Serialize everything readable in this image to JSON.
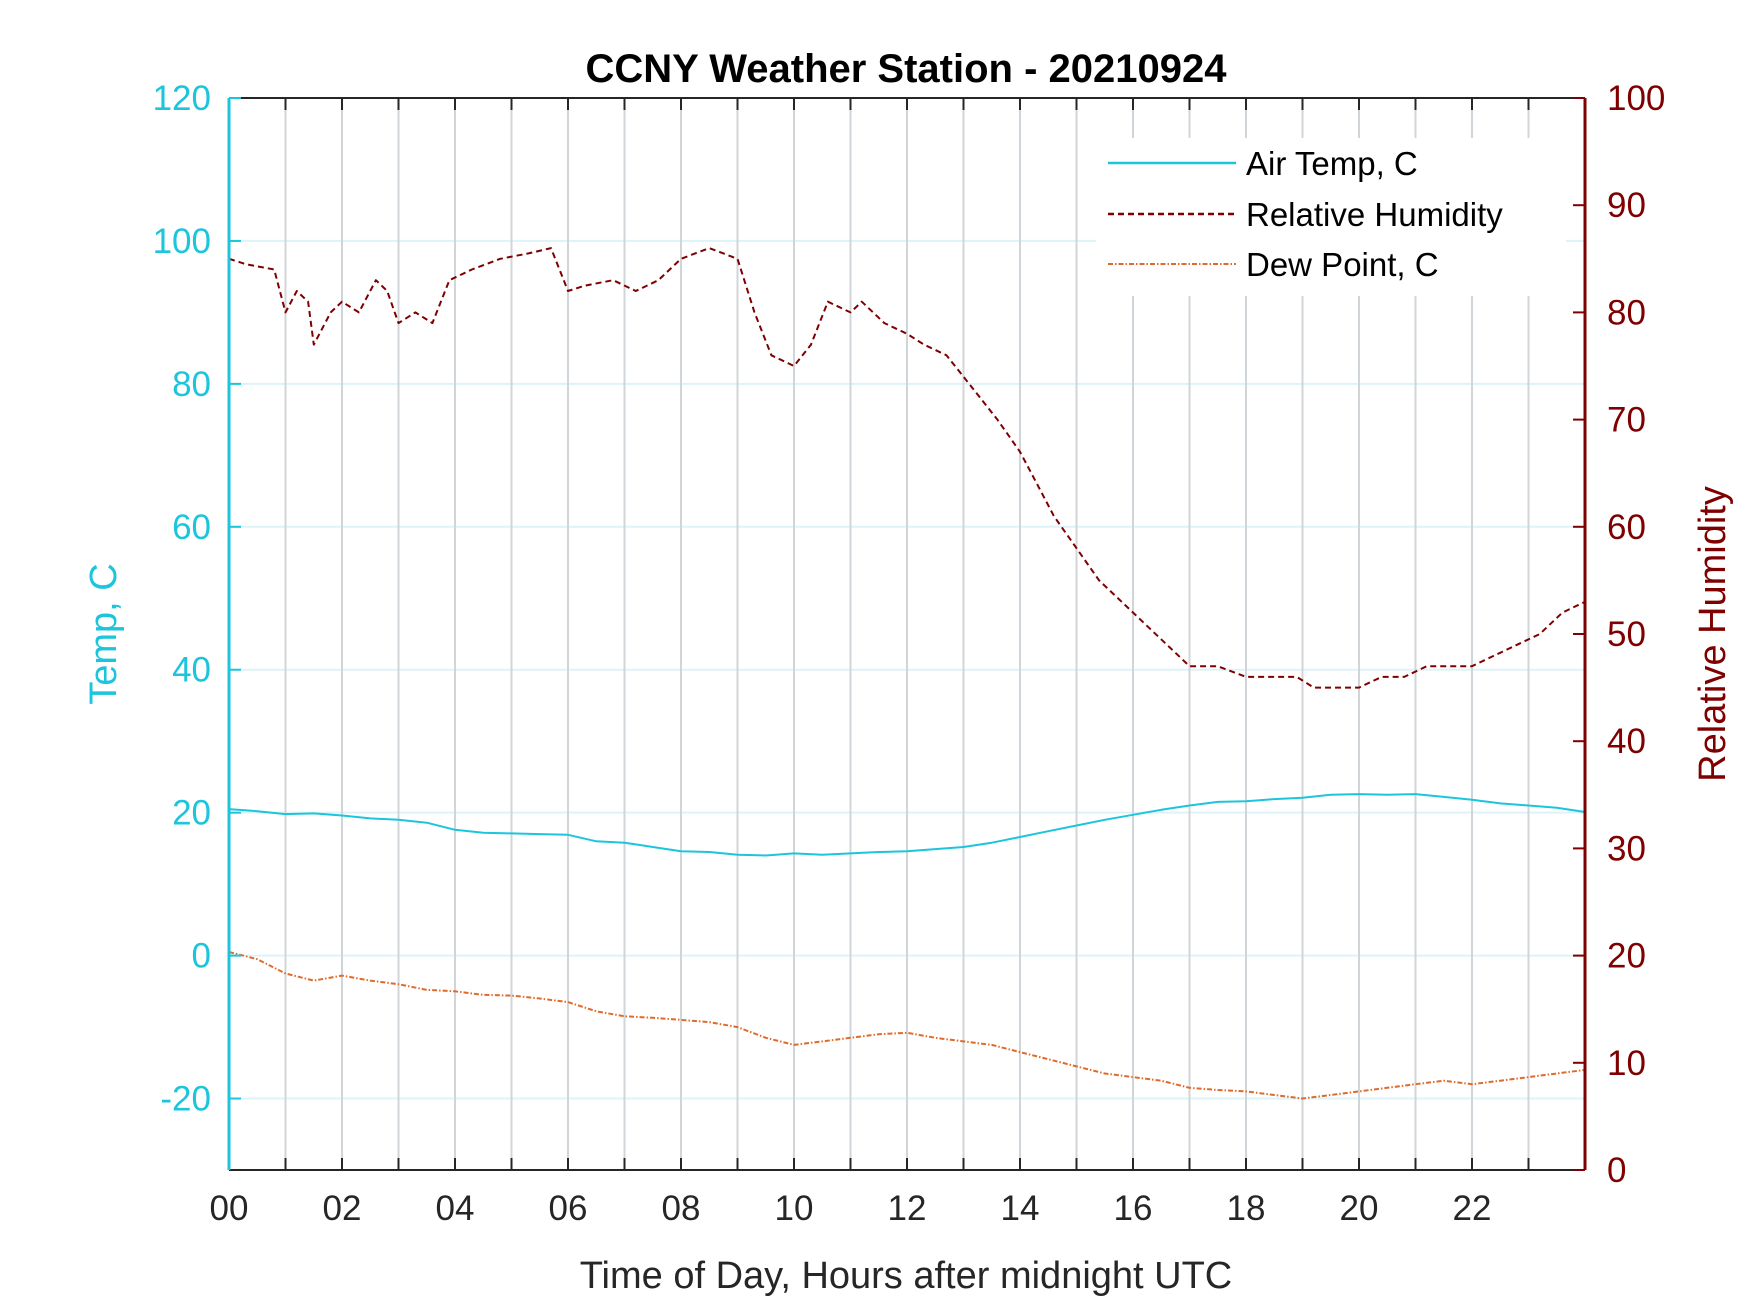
{
  "chart_data": {
    "type": "line",
    "title": "CCNY Weather Station - 20210924",
    "xlabel": "Time of Day, Hours after midnight UTC",
    "ylabel_left": "Temp, C",
    "ylabel_right": "Relative Humidity",
    "xlim": [
      0,
      24
    ],
    "ylim_left": [
      -30,
      120
    ],
    "ylim_right": [
      0,
      100
    ],
    "x_ticks": [
      0,
      2,
      4,
      6,
      8,
      10,
      12,
      14,
      16,
      18,
      20,
      22
    ],
    "x_tick_labels": [
      "00",
      "02",
      "04",
      "06",
      "08",
      "10",
      "12",
      "14",
      "16",
      "18",
      "20",
      "22"
    ],
    "y_left_ticks": [
      -20,
      0,
      20,
      40,
      60,
      80,
      100,
      120
    ],
    "y_left_tick_labels": [
      "-20",
      "0",
      "20",
      "40",
      "60",
      "80",
      "100",
      "120"
    ],
    "y_right_ticks": [
      0,
      10,
      20,
      30,
      40,
      50,
      60,
      70,
      80,
      90,
      100
    ],
    "y_right_tick_labels": [
      "0",
      "10",
      "20",
      "30",
      "40",
      "50",
      "60",
      "70",
      "80",
      "90",
      "100"
    ],
    "grid": true,
    "legend_position": "top-right",
    "colors": {
      "left_axis": "#1CC5DC",
      "right_axis": "#7F0000",
      "air_temp": "#1CC5DC",
      "humidity": "#7F0000",
      "dew_point": "#E06A2A",
      "grid_vertical": "#D0D5DA",
      "grid_horizontal": "#DDF3F7"
    },
    "series": [
      {
        "name": "Air Temp, C",
        "axis": "left",
        "style": "solid",
        "x": [
          0,
          0.5,
          1,
          1.5,
          2,
          2.5,
          3,
          3.5,
          4,
          4.5,
          5,
          5.5,
          6,
          6.5,
          7,
          7.5,
          8,
          8.5,
          9,
          9.5,
          10,
          10.5,
          11,
          11.5,
          12,
          12.5,
          13,
          13.5,
          14,
          14.5,
          15,
          15.5,
          16,
          16.5,
          17,
          17.5,
          18,
          18.5,
          19,
          19.5,
          20,
          20.5,
          21,
          21.5,
          22,
          22.5,
          23,
          23.5,
          24
        ],
        "values": [
          20.5,
          20.2,
          19.8,
          19.9,
          19.6,
          19.2,
          19.0,
          18.6,
          17.6,
          17.2,
          17.1,
          17.0,
          16.9,
          16.0,
          15.8,
          15.2,
          14.6,
          14.5,
          14.1,
          14.0,
          14.3,
          14.1,
          14.3,
          14.5,
          14.6,
          14.9,
          15.2,
          15.8,
          16.6,
          17.4,
          18.2,
          19.0,
          19.7,
          20.4,
          21.0,
          21.5,
          21.6,
          21.9,
          22.1,
          22.5,
          22.6,
          22.5,
          22.6,
          22.2,
          21.8,
          21.3,
          21.0,
          20.7,
          20.1
        ]
      },
      {
        "name": "Relative Humidity",
        "axis": "right",
        "style": "dashed",
        "x": [
          0,
          0.3,
          0.8,
          1.0,
          1.2,
          1.4,
          1.5,
          1.8,
          2.0,
          2.3,
          2.6,
          2.8,
          3.0,
          3.3,
          3.6,
          3.9,
          4.3,
          4.8,
          5.3,
          5.7,
          6.0,
          6.3,
          6.8,
          7.2,
          7.6,
          8.0,
          8.5,
          9.0,
          9.3,
          9.6,
          10.0,
          10.3,
          10.6,
          11.0,
          11.2,
          11.4,
          11.6,
          12.0,
          12.3,
          12.7,
          13.0,
          13.3,
          13.6,
          14.0,
          14.3,
          14.6,
          15.0,
          15.4,
          15.8,
          16.2,
          16.6,
          17.0,
          17.5,
          18.0,
          18.5,
          18.9,
          19.2,
          19.6,
          20.0,
          20.4,
          20.8,
          21.2,
          21.6,
          22.0,
          22.4,
          22.8,
          23.2,
          23.6,
          24.0
        ],
        "values": [
          85,
          84.5,
          84,
          80,
          82,
          81,
          77,
          80,
          81,
          80,
          83,
          82,
          79,
          80,
          79,
          83,
          84,
          85,
          85.5,
          86,
          82,
          82.5,
          83,
          82,
          83,
          85,
          86,
          85,
          80,
          76,
          75,
          77,
          81,
          80,
          81,
          80,
          79,
          78,
          77,
          76,
          74,
          72,
          70,
          67,
          64,
          61,
          58,
          55,
          53,
          51,
          49,
          47,
          47,
          46,
          46,
          46,
          45,
          45,
          45,
          46,
          46,
          47,
          47,
          47,
          48,
          49,
          50,
          52,
          53
        ]
      },
      {
        "name": "Dew Point, C",
        "axis": "left",
        "style": "dash-dot",
        "x": [
          0,
          0.5,
          1,
          1.5,
          2,
          2.5,
          3,
          3.5,
          4,
          4.5,
          5,
          5.5,
          6,
          6.5,
          7,
          7.5,
          8,
          8.5,
          9,
          9.5,
          10,
          10.5,
          11,
          11.5,
          12,
          12.5,
          13,
          13.5,
          14,
          14.5,
          15,
          15.5,
          16,
          16.5,
          17,
          17.5,
          18,
          18.5,
          19,
          19.5,
          20,
          20.5,
          21,
          21.5,
          22,
          22.5,
          23,
          23.5,
          24
        ],
        "values": [
          0.5,
          -0.5,
          -2.5,
          -3.5,
          -2.8,
          -3.5,
          -4.0,
          -4.8,
          -5.0,
          -5.5,
          -5.6,
          -6.0,
          -6.5,
          -7.8,
          -8.5,
          -8.7,
          -9.0,
          -9.3,
          -10.0,
          -11.5,
          -12.5,
          -12.0,
          -11.5,
          -11.0,
          -10.8,
          -11.5,
          -12.0,
          -12.5,
          -13.5,
          -14.5,
          -15.5,
          -16.5,
          -17.0,
          -17.5,
          -18.5,
          -18.8,
          -19.0,
          -19.5,
          -20.0,
          -19.5,
          -19.0,
          -18.5,
          -18.0,
          -17.5,
          -18.0,
          -17.5,
          -17.0,
          -16.5,
          -16.0
        ]
      }
    ]
  }
}
